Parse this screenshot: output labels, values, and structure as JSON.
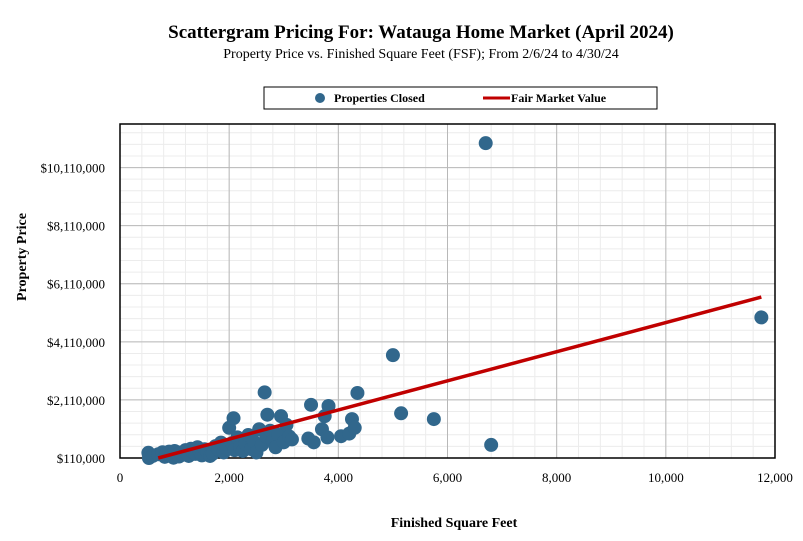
{
  "chart_data": {
    "type": "scatter",
    "title": "Scattergram Pricing For: Watauga Home Market (April 2024)",
    "subtitle": "Property Price vs. Finished Square Feet (FSF); From 2/6/24 to 4/30/24",
    "xlabel": "Finished Square Feet",
    "ylabel": "Property Price",
    "xlim": [
      0,
      12000
    ],
    "ylim": [
      110000,
      11610000
    ],
    "x_ticks": [
      0,
      2000,
      4000,
      6000,
      8000,
      10000,
      12000
    ],
    "x_tick_labels": [
      "0",
      "2,000",
      "4,000",
      "6,000",
      "8,000",
      "10,000",
      "12,000"
    ],
    "y_ticks": [
      110000,
      2110000,
      4110000,
      6110000,
      8110000,
      10110000
    ],
    "y_tick_labels": [
      "$110,000",
      "$2,110,000",
      "$4,110,000",
      "$6,110,000",
      "$8,110,000",
      "$10,110,000"
    ],
    "grid": true,
    "legend_position": "top",
    "colors": {
      "points": "#31678c",
      "trend": "#c00000"
    },
    "series": [
      {
        "name": "Properties Closed",
        "points": [
          [
            520,
            290000
          ],
          [
            530,
            110000
          ],
          [
            600,
            180000
          ],
          [
            700,
            240000
          ],
          [
            780,
            310000
          ],
          [
            820,
            150000
          ],
          [
            850,
            260000
          ],
          [
            900,
            330000
          ],
          [
            930,
            190000
          ],
          [
            980,
            120000
          ],
          [
            1000,
            350000
          ],
          [
            1050,
            240000
          ],
          [
            1080,
            160000
          ],
          [
            1100,
            300000
          ],
          [
            1150,
            220000
          ],
          [
            1200,
            380000
          ],
          [
            1230,
            260000
          ],
          [
            1260,
            180000
          ],
          [
            1300,
            430000
          ],
          [
            1330,
            320000
          ],
          [
            1380,
            250000
          ],
          [
            1420,
            480000
          ],
          [
            1450,
            360000
          ],
          [
            1500,
            200000
          ],
          [
            1550,
            410000
          ],
          [
            1600,
            300000
          ],
          [
            1650,
            180000
          ],
          [
            1700,
            260000
          ],
          [
            1750,
            520000
          ],
          [
            1800,
            400000
          ],
          [
            1850,
            640000
          ],
          [
            1900,
            300000
          ],
          [
            1950,
            450000
          ],
          [
            2000,
            1150000
          ],
          [
            2050,
            620000
          ],
          [
            2080,
            1480000
          ],
          [
            2100,
            380000
          ],
          [
            2150,
            820000
          ],
          [
            2200,
            480000
          ],
          [
            2250,
            350000
          ],
          [
            2300,
            600000
          ],
          [
            2350,
            900000
          ],
          [
            2400,
            420000
          ],
          [
            2450,
            680000
          ],
          [
            2500,
            300000
          ],
          [
            2550,
            1100000
          ],
          [
            2600,
            560000
          ],
          [
            2650,
            2370000
          ],
          [
            2680,
            850000
          ],
          [
            2700,
            1600000
          ],
          [
            2750,
            1050000
          ],
          [
            2800,
            700000
          ],
          [
            2850,
            480000
          ],
          [
            2900,
            920000
          ],
          [
            2950,
            1550000
          ],
          [
            3000,
            650000
          ],
          [
            3050,
            1250000
          ],
          [
            3100,
            850000
          ],
          [
            3150,
            750000
          ],
          [
            3450,
            780000
          ],
          [
            3500,
            1940000
          ],
          [
            3550,
            650000
          ],
          [
            3700,
            1100000
          ],
          [
            3750,
            1550000
          ],
          [
            3800,
            820000
          ],
          [
            3820,
            1900000
          ],
          [
            4050,
            860000
          ],
          [
            4200,
            950000
          ],
          [
            4250,
            1450000
          ],
          [
            4300,
            1150000
          ],
          [
            4350,
            2350000
          ],
          [
            5000,
            3650000
          ],
          [
            5150,
            1650000
          ],
          [
            5750,
            1450000
          ],
          [
            6700,
            10950000
          ],
          [
            6800,
            560000
          ],
          [
            11750,
            4950000
          ]
        ]
      },
      {
        "name": "Fair Market Value",
        "line": [
          [
            700,
            110000
          ],
          [
            11750,
            5650000
          ]
        ]
      }
    ]
  }
}
